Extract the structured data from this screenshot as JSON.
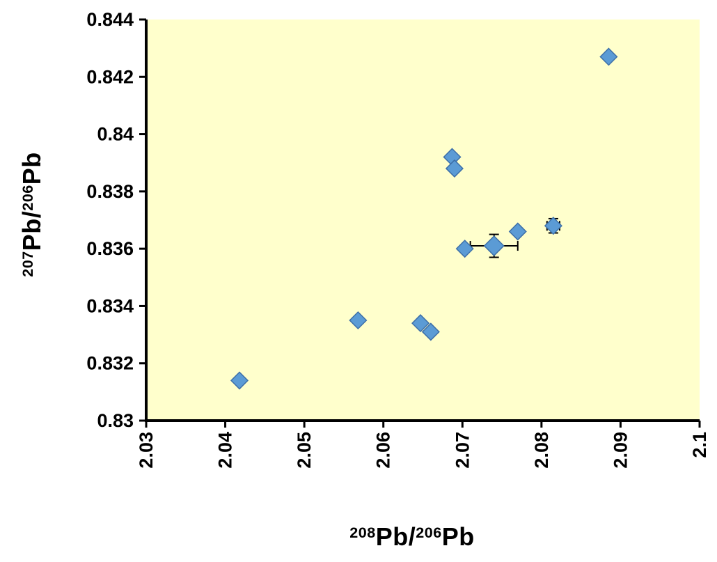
{
  "chart_data": {
    "type": "scatter",
    "title": "",
    "xlabel": "208Pb/206Pb",
    "ylabel": "207Pb/206Pb",
    "xlabel_parts": {
      "iso1": "208",
      "elem1": "Pb/",
      "iso2": "206",
      "elem2": "Pb"
    },
    "ylabel_parts": {
      "iso1": "207",
      "elem1": "Pb/",
      "iso2": "206",
      "elem2": "Pb"
    },
    "xlim": [
      2.03,
      2.1
    ],
    "ylim": [
      0.83,
      0.844
    ],
    "x_ticks": {
      "values": [
        2.03,
        2.04,
        2.05,
        2.06,
        2.07,
        2.08,
        2.09,
        2.1
      ],
      "labels": [
        "2.03",
        "2.04",
        "2.05",
        "2.06",
        "2.07",
        "2.08",
        "2.09",
        "2.1"
      ],
      "label_rotation_deg": -90
    },
    "y_ticks": {
      "values": [
        0.83,
        0.832,
        0.834,
        0.836,
        0.838,
        0.84,
        0.842,
        0.844
      ],
      "labels": [
        "0.83",
        "0.832",
        "0.834",
        "0.836",
        "0.838",
        "0.84",
        "0.842",
        "0.844"
      ]
    },
    "grid": false,
    "legend": false,
    "plot_background": "#ffffcc",
    "page_background": "#ffffff",
    "axis_color": "#000000",
    "error_bar_color": "#000000",
    "marker": {
      "shape": "diamond",
      "fill": "#5b9bd5",
      "stroke": "#3d6fa8",
      "half_size": 12
    },
    "points": [
      {
        "x": 2.0885,
        "y": 0.8427
      },
      {
        "x": 2.0687,
        "y": 0.8392
      },
      {
        "x": 2.069,
        "y": 0.8388
      },
      {
        "x": 2.0815,
        "y": 0.8368,
        "xerr": 0.0008,
        "yerr": 0.00025
      },
      {
        "x": 2.077,
        "y": 0.8366
      },
      {
        "x": 2.074,
        "y": 0.8361,
        "xerr": 0.003,
        "yerr": 0.0004,
        "half_size": 14
      },
      {
        "x": 2.0703,
        "y": 0.836
      },
      {
        "x": 2.0568,
        "y": 0.8335
      },
      {
        "x": 2.0647,
        "y": 0.8334
      },
      {
        "x": 2.066,
        "y": 0.8331
      },
      {
        "x": 2.0418,
        "y": 0.8314
      }
    ]
  }
}
